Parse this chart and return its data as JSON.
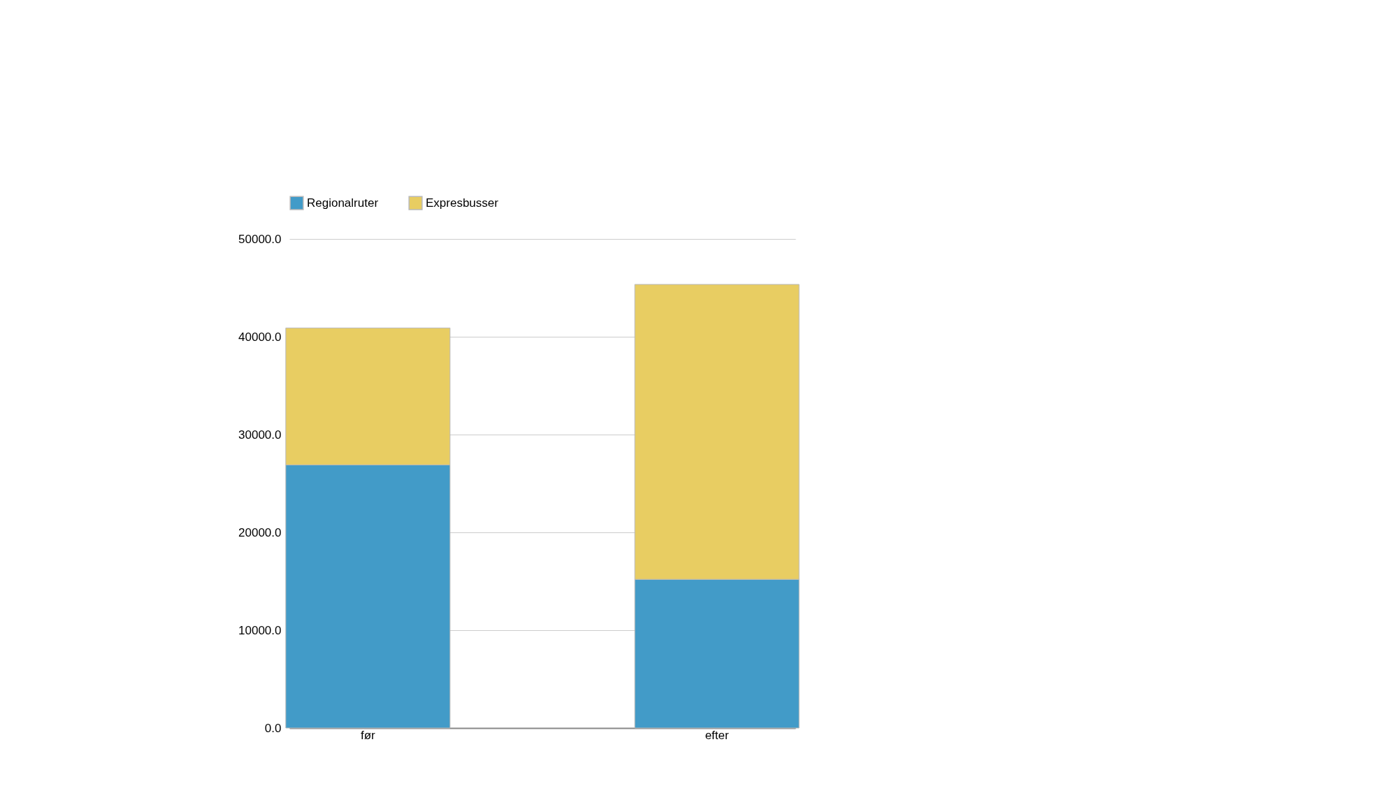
{
  "chart_data": {
    "type": "bar",
    "stacked": true,
    "categories": [
      "før",
      "efter"
    ],
    "series": [
      {
        "name": "Regionalruter",
        "color": "#429bc8",
        "values": [
          26900,
          15200
        ]
      },
      {
        "name": "Expresbusser",
        "color": "#e8cd62",
        "values": [
          14000,
          30150
        ]
      }
    ],
    "ylim": [
      0,
      50000
    ],
    "yticks": [
      {
        "value": 0,
        "label": "0.0"
      },
      {
        "value": 10000,
        "label": "10000.0"
      },
      {
        "value": 20000,
        "label": "20000.0"
      },
      {
        "value": 30000,
        "label": "30000.0"
      },
      {
        "value": 40000,
        "label": "40000.0"
      },
      {
        "value": 50000,
        "label": "50000.0"
      }
    ],
    "grid": "y",
    "legend": "top"
  }
}
